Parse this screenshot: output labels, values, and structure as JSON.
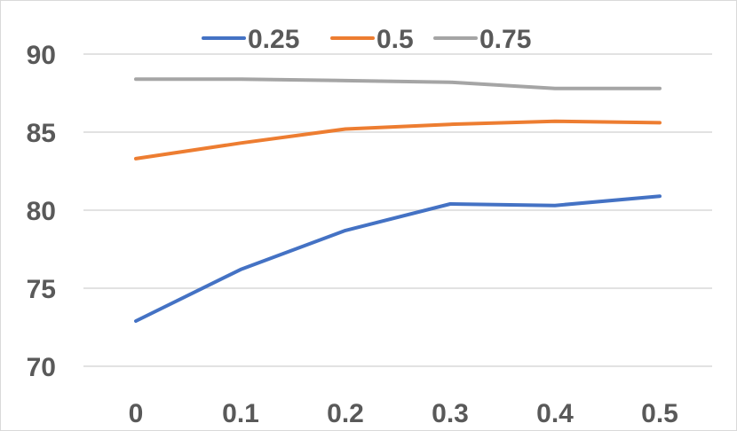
{
  "chart_data": {
    "type": "line",
    "x": [
      0,
      0.1,
      0.2,
      0.3,
      0.4,
      0.5
    ],
    "x_tick_labels": [
      "0",
      "0.1",
      "0.2",
      "0.3",
      "0.4",
      "0.5"
    ],
    "ylim": [
      70,
      90
    ],
    "y_ticks": [
      70,
      75,
      80,
      85,
      90
    ],
    "grid": true,
    "legend_position": "top",
    "title": "",
    "xlabel": "",
    "ylabel": "",
    "series": [
      {
        "name": "0.25",
        "color": "#4472C4",
        "values": [
          72.9,
          76.2,
          78.7,
          80.4,
          80.3,
          80.9
        ]
      },
      {
        "name": "0.5",
        "color": "#ED7D31",
        "values": [
          83.3,
          84.3,
          85.2,
          85.5,
          85.7,
          85.6
        ]
      },
      {
        "name": "0.75",
        "color": "#A5A5A5",
        "values": [
          88.4,
          88.4,
          88.3,
          88.2,
          87.8,
          87.8
        ]
      }
    ]
  }
}
